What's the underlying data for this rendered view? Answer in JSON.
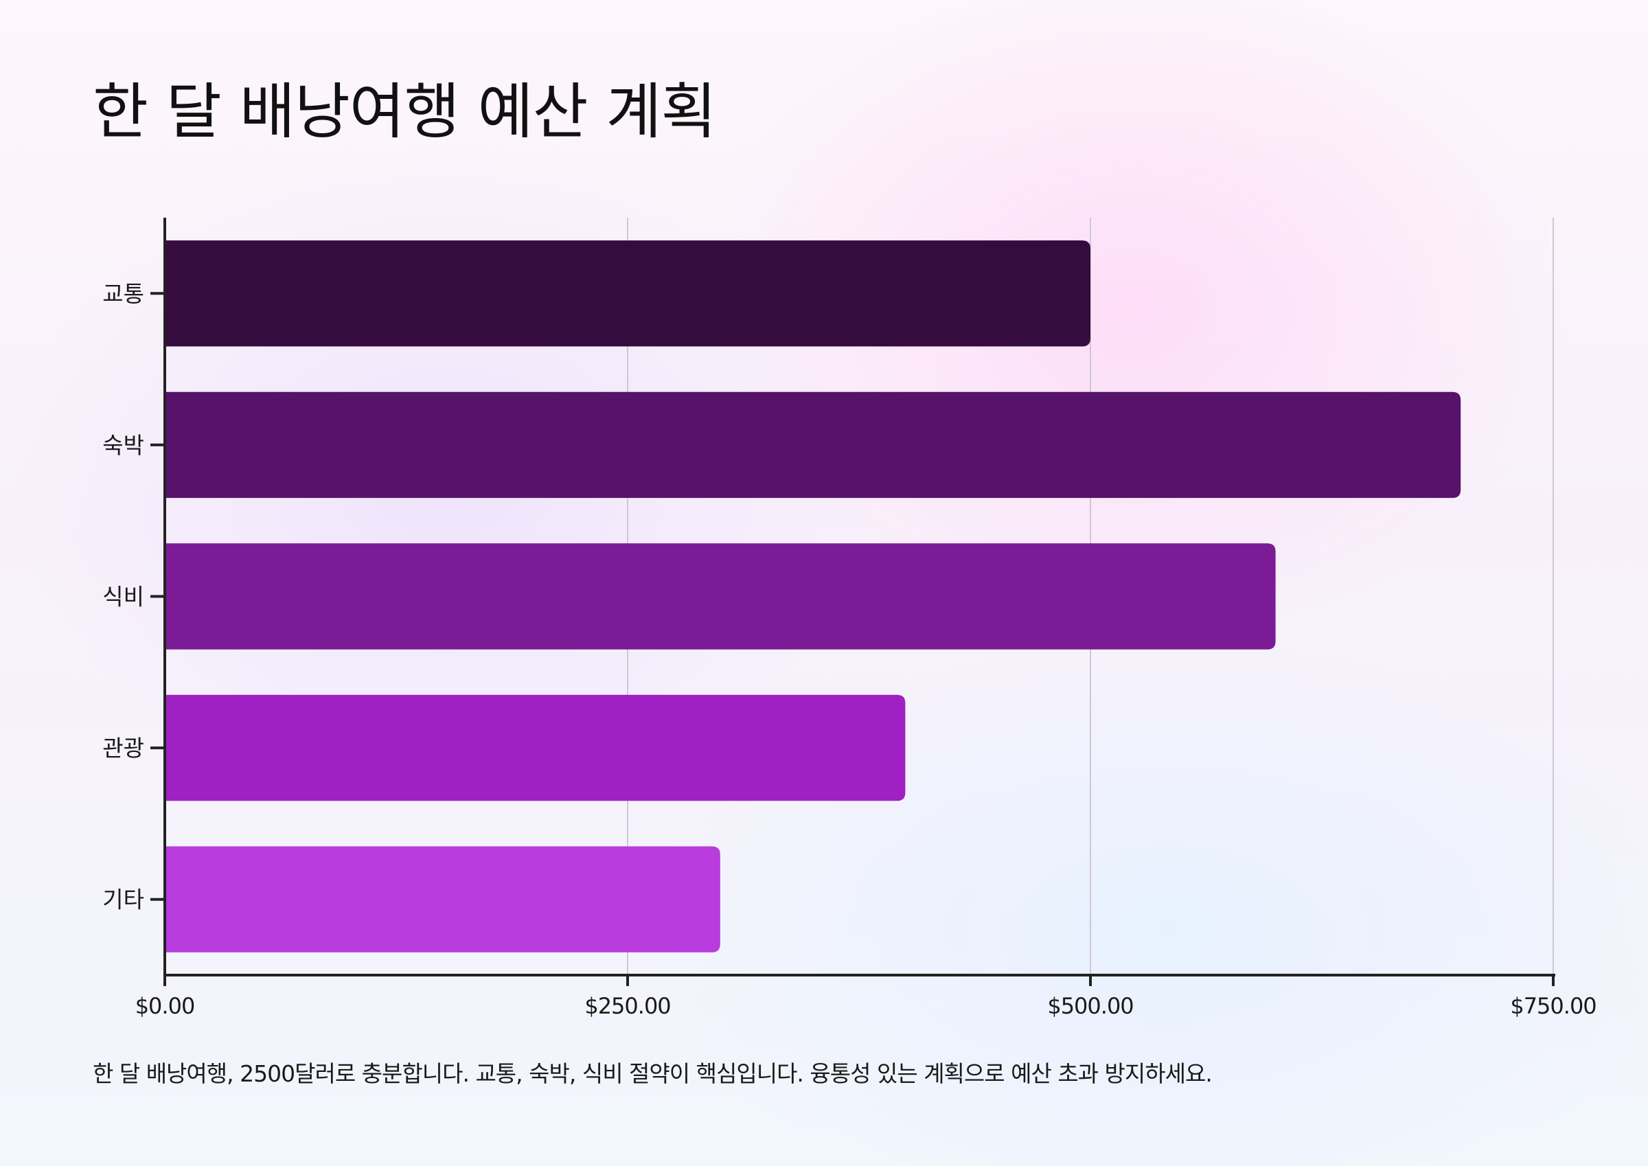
{
  "title": "한 달 배낭여행 예산 계획",
  "footnote": "한 달 배낭여행, 2500달러로 충분합니다. 교통, 숙박, 식비 절약이 핵심입니다. 융통성 있는 계획으로 예산 초과 방지하세요.",
  "chart_data": {
    "type": "bar",
    "orientation": "horizontal",
    "title": "한 달 배낭여행 예산 계획",
    "xlabel": "",
    "ylabel": "",
    "categories": [
      "교통",
      "숙박",
      "식비",
      "관광",
      "기타"
    ],
    "values": [
      500,
      700,
      600,
      400,
      300
    ],
    "colors": [
      "#360c3f",
      "#561369",
      "#7b1b96",
      "#a021c3",
      "#b83cde"
    ],
    "xlim": [
      0,
      750
    ],
    "xticks": [
      0,
      250,
      500,
      750
    ],
    "xtick_labels": [
      "$0.00",
      "$250.00",
      "$500.00",
      "$750.00"
    ],
    "grid": "vertical",
    "legend": "none"
  }
}
